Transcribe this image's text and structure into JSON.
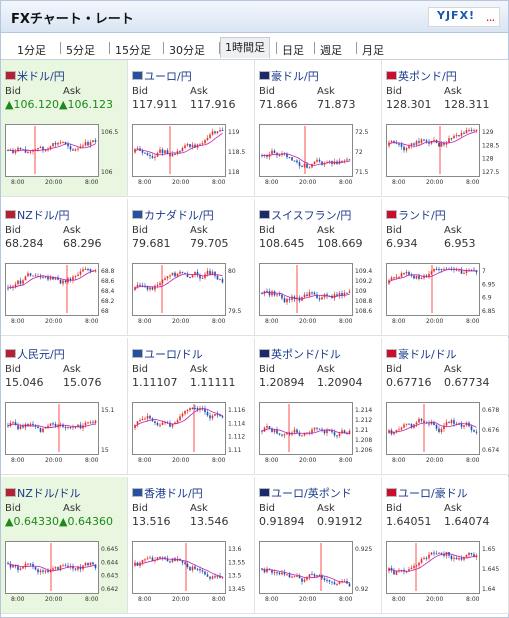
{
  "header": {
    "title": "FXチャート・レート",
    "logo": "YJFX!"
  },
  "tabs": [
    {
      "label": "1分足"
    },
    {
      "label": "5分足"
    },
    {
      "label": "15分足"
    },
    {
      "label": "30分足"
    },
    {
      "label": "1時間足"
    },
    {
      "label": "日足"
    },
    {
      "label": "週足"
    },
    {
      "label": "月足"
    }
  ],
  "active_tab": "1時間足",
  "labels": {
    "bid": "Bid",
    "ask": "Ask"
  },
  "pairs": [
    {
      "name": "米ドル/円",
      "bid": "106.120",
      "ask": "106.123",
      "trend": "up",
      "highlight": true,
      "ticks": [
        "106.5",
        "106"
      ],
      "xticks": [
        "8:00",
        "20:00",
        "8:00"
      ]
    },
    {
      "name": "ユーロ/円",
      "bid": "117.911",
      "ask": "117.916",
      "trend": "",
      "highlight": false,
      "ticks": [
        "119",
        "118.5",
        "118"
      ],
      "xticks": [
        "8:00",
        "20:00",
        "8:00"
      ]
    },
    {
      "name": "豪ドル/円",
      "bid": "71.866",
      "ask": "71.873",
      "trend": "",
      "highlight": false,
      "ticks": [
        "72.5",
        "72",
        "71.5"
      ],
      "xticks": [
        "8:00",
        "20:00",
        "8:00"
      ]
    },
    {
      "name": "英ポンド/円",
      "bid": "128.301",
      "ask": "128.311",
      "trend": "",
      "highlight": false,
      "ticks": [
        "129",
        "128.5",
        "128",
        "127.5"
      ],
      "xticks": [
        "8:00",
        "20:00",
        "8:00"
      ]
    },
    {
      "name": "NZドル/円",
      "bid": "68.284",
      "ask": "68.296",
      "trend": "",
      "highlight": false,
      "ticks": [
        "68.8",
        "68.6",
        "68.4",
        "68.2",
        "68"
      ],
      "xticks": [
        "8:00",
        "20:00",
        "8:00"
      ]
    },
    {
      "name": "カナダドル/円",
      "bid": "79.681",
      "ask": "79.705",
      "trend": "",
      "highlight": false,
      "ticks": [
        "80",
        "79.5"
      ],
      "xticks": [
        "8:00",
        "20:00",
        "8:00"
      ]
    },
    {
      "name": "スイスフラン/円",
      "bid": "108.645",
      "ask": "108.669",
      "trend": "",
      "highlight": false,
      "ticks": [
        "109.4",
        "109.2",
        "109",
        "108.8",
        "108.6"
      ],
      "xticks": [
        "8:00",
        "20:00",
        "8:00"
      ]
    },
    {
      "name": "ランド/円",
      "bid": "6.934",
      "ask": "6.953",
      "trend": "",
      "highlight": false,
      "ticks": [
        "7",
        "6.95",
        "6.9",
        "6.85"
      ],
      "xticks": [
        "8:00",
        "20:00",
        "8:00"
      ]
    },
    {
      "name": "人民元/円",
      "bid": "15.046",
      "ask": "15.076",
      "trend": "",
      "highlight": false,
      "ticks": [
        "15.1",
        "15"
      ],
      "xticks": [
        "8:00",
        "20:00",
        "8:00"
      ]
    },
    {
      "name": "ユーロ/ドル",
      "bid": "1.11107",
      "ask": "1.11111",
      "trend": "",
      "highlight": false,
      "ticks": [
        "1.116",
        "1.114",
        "1.112",
        "1.11"
      ],
      "xticks": [
        "8:00",
        "20:00",
        "8:00"
      ]
    },
    {
      "name": "英ポンド/ドル",
      "bid": "1.20894",
      "ask": "1.20904",
      "trend": "",
      "highlight": false,
      "ticks": [
        "1.214",
        "1.212",
        "1.21",
        "1.208",
        "1.206"
      ],
      "xticks": [
        "8:00",
        "20:00",
        "8:00"
      ]
    },
    {
      "name": "豪ドル/ドル",
      "bid": "0.67716",
      "ask": "0.67734",
      "trend": "",
      "highlight": false,
      "ticks": [
        "0.678",
        "0.676",
        "0.674"
      ],
      "xticks": [
        "8:00",
        "20:00",
        "8:00"
      ]
    },
    {
      "name": "NZドル/ドル",
      "bid": "0.64330",
      "ask": "0.64360",
      "trend": "up",
      "highlight": true,
      "ticks": [
        "0.645",
        "0.644",
        "0.643",
        "0.642"
      ],
      "xticks": [
        "8:00",
        "20:00",
        "8:00"
      ]
    },
    {
      "name": "香港ドル/円",
      "bid": "13.516",
      "ask": "13.546",
      "trend": "",
      "highlight": false,
      "ticks": [
        "13.6",
        "13.55",
        "13.5",
        "13.45"
      ],
      "xticks": [
        "8:00",
        "20:00",
        "8:00"
      ]
    },
    {
      "name": "ユーロ/英ポンド",
      "bid": "0.91894",
      "ask": "0.91912",
      "trend": "",
      "highlight": false,
      "ticks": [
        "0.925",
        "0.92"
      ],
      "xticks": [
        "8:00",
        "20:00",
        "8:00"
      ]
    },
    {
      "name": "ユーロ/豪ドル",
      "bid": "1.64051",
      "ask": "1.64074",
      "trend": "",
      "highlight": false,
      "ticks": [
        "1.65",
        "1.645",
        "1.64"
      ],
      "xticks": [
        "8:00",
        "20:00",
        "8:00"
      ]
    }
  ],
  "colors": {
    "up_candle": "#e03020",
    "down_candle": "#1f4fb0",
    "ma_line": "#c020b0",
    "spike": "#ff2020",
    "trend_up": "#1a8a1a",
    "link": "#1a3a8a"
  }
}
